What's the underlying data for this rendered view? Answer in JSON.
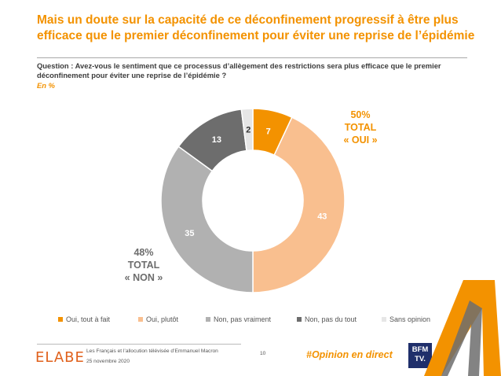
{
  "title": "Mais un doute sur la capacité de ce déconfinement progressif à être plus efficace que le premier déconfinement pour éviter une reprise de l’épidémie",
  "question": "Question : Avez-vous le sentiment que ce processus d’allègement des restrictions sera plus efficace que le premier déconfinement pour éviter une reprise de l’épidémie ?",
  "unit": "En %",
  "colors": {
    "accent": "#F39200",
    "oui_tout_a_fait": "#F39200",
    "oui_plutot": "#F9BF8F",
    "non_pas_vraiment": "#B1B1B1",
    "non_pas_du_tout": "#6D6D6D",
    "sans_opinion": "#E6E6E6"
  },
  "chart_data": {
    "type": "pie",
    "donut": true,
    "slices": [
      {
        "name": "Oui, tout à fait",
        "value": 7,
        "color": "#F39200",
        "label_color": "#ffffff"
      },
      {
        "name": "Oui, plutôt",
        "value": 43,
        "color": "#F9BF8F",
        "label_color": "#ffffff"
      },
      {
        "name": "Non, pas vraiment",
        "value": 35,
        "color": "#B1B1B1",
        "label_color": "#ffffff"
      },
      {
        "name": "Non, pas du tout",
        "value": 13,
        "color": "#6D6D6D",
        "label_color": "#ffffff"
      },
      {
        "name": "Sans opinion",
        "value": 2,
        "color": "#E6E6E6",
        "label_color": "#333333"
      }
    ],
    "legend_position": "bottom",
    "totals": {
      "oui": {
        "value": "50%",
        "label": "TOTAL",
        "sub": "« OUI »"
      },
      "non": {
        "value": "48%",
        "label": "TOTAL",
        "sub": "« NON »"
      }
    }
  },
  "footer": {
    "logo": "ELABE",
    "line1": "Les Français et l’allocution télévisée d’Emmanuel Macron",
    "line2": "25 novembre 2020",
    "page": "10",
    "hashtag": "#Opinion en direct",
    "partner_line1": "BFM",
    "partner_line2": "TV."
  }
}
